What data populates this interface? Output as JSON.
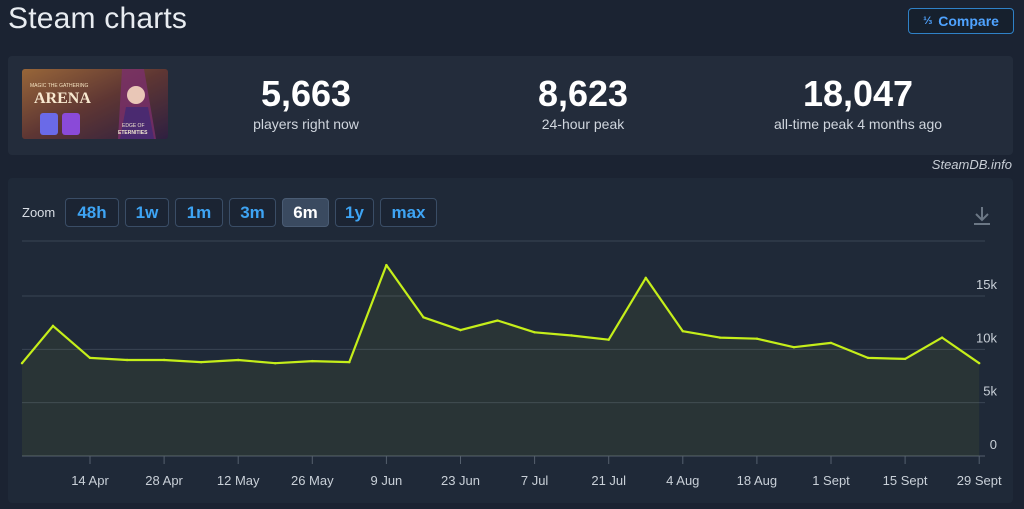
{
  "page": {
    "title": "Steam charts"
  },
  "compare": {
    "label": "Compare",
    "icon": "fraction-icon"
  },
  "stats": [
    {
      "value": "5,663",
      "label": "players right now"
    },
    {
      "value": "8,623",
      "label": "24-hour peak"
    },
    {
      "value": "18,047",
      "label": "all-time peak 4 months ago"
    }
  ],
  "game_image": {
    "text_top": "MAGIC THE GATHERING",
    "text_main": "ARENA",
    "text_sub": "EDGE OF ETERNITIES"
  },
  "credit": "SteamDB.info",
  "zoom": {
    "label": "Zoom",
    "options": [
      "48h",
      "1w",
      "1m",
      "3m",
      "6m",
      "1y",
      "max"
    ],
    "selected": "6m"
  },
  "colors": {
    "line": "#c5ee1a",
    "accent": "#3ea4f4",
    "background": "#1b2332"
  },
  "chart_data": {
    "type": "line",
    "title": "",
    "xlabel": "",
    "ylabel": "",
    "x_ticks": [
      "14 Apr",
      "28 Apr",
      "12 May",
      "26 May",
      "9 Jun",
      "23 Jun",
      "7 Jul",
      "21 Jul",
      "4 Aug",
      "18 Aug",
      "1 Sept",
      "15 Sept",
      "29 Sept"
    ],
    "y_ticks": [
      "0",
      "5k",
      "10k",
      "15k"
    ],
    "ylim": [
      0,
      19000
    ],
    "grid": true,
    "legend": "none",
    "series": [
      {
        "name": "",
        "x": [
          "31 Mar",
          "7 Apr",
          "14 Apr",
          "21 Apr",
          "28 Apr",
          "5 May",
          "12 May",
          "19 May",
          "26 May",
          "2 Jun",
          "9 Jun",
          "16 Jun",
          "23 Jun",
          "30 Jun",
          "7 Jul",
          "14 Jul",
          "21 Jul",
          "28 Jul",
          "4 Aug",
          "11 Aug",
          "18 Aug",
          "25 Aug",
          "1 Sept",
          "8 Sept",
          "15 Sept",
          "22 Sept",
          "29 Sept"
        ],
        "values": [
          8700,
          12200,
          9200,
          9000,
          9000,
          8800,
          9000,
          8700,
          8900,
          8800,
          17900,
          13000,
          11800,
          12700,
          11600,
          11300,
          10900,
          16700,
          11700,
          11100,
          11000,
          10200,
          10600,
          9200,
          9100,
          11100,
          8700
        ]
      }
    ]
  }
}
